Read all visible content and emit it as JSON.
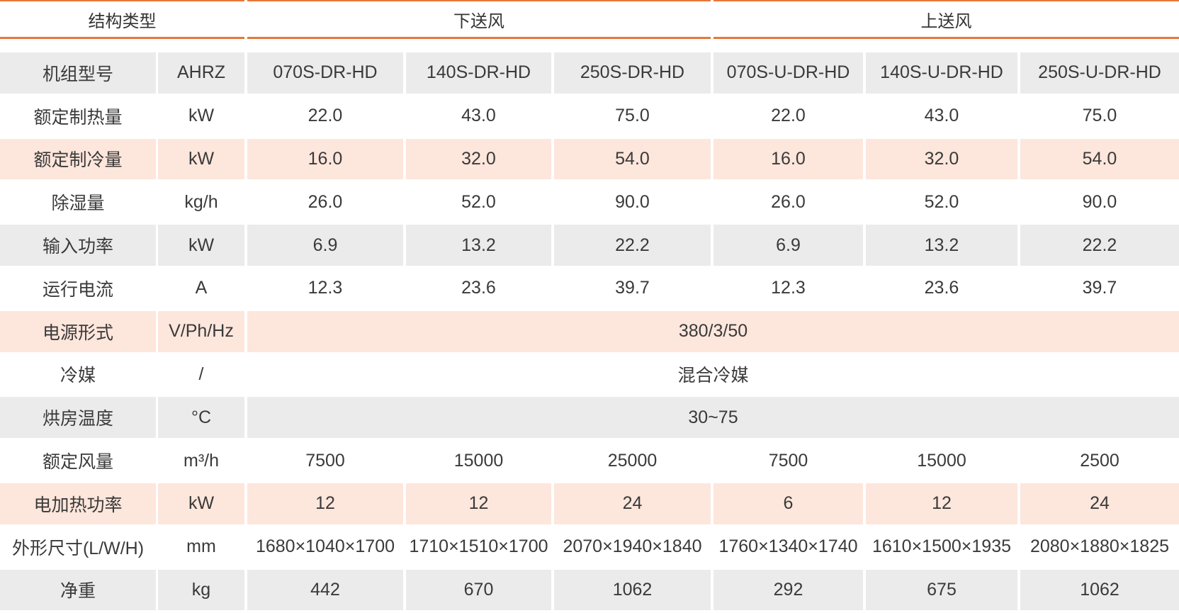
{
  "table": {
    "header": [
      "结构类型",
      "下送风",
      "上送风"
    ],
    "rows": [
      [
        "机组型号",
        "AHRZ",
        "070S-DR-HD",
        "140S-DR-HD",
        "250S-DR-HD",
        "070S-U-DR-HD",
        "140S-U-DR-HD",
        "250S-U-DR-HD"
      ],
      [
        "额定制热量",
        "kW",
        "22.0",
        "43.0",
        "75.0",
        "22.0",
        "43.0",
        "75.0"
      ],
      [
        "额定制冷量",
        "kW",
        "16.0",
        "32.0",
        "54.0",
        "16.0",
        "32.0",
        "54.0"
      ],
      [
        "除湿量",
        "kg/h",
        "26.0",
        "52.0",
        "90.0",
        "26.0",
        "52.0",
        "90.0"
      ],
      [
        "输入功率",
        "kW",
        "6.9",
        "13.2",
        "22.2",
        "6.9",
        "13.2",
        "22.2"
      ],
      [
        "运行电流",
        "A",
        "12.3",
        "23.6",
        "39.7",
        "12.3",
        "23.6",
        "39.7"
      ],
      [
        "电源形式",
        "V/Ph/Hz",
        "380/3/50"
      ],
      [
        "冷媒",
        "/",
        "混合冷媒"
      ],
      [
        "烘房温度",
        "°C",
        "30~75"
      ],
      [
        "额定风量",
        "m³/h",
        "7500",
        "15000",
        "25000",
        "7500",
        "15000",
        "2500"
      ],
      [
        "电加热功率",
        "kW",
        "12",
        "12",
        "24",
        "6",
        "12",
        "24"
      ],
      [
        "外形尺寸(L/W/H)",
        "mm",
        "1680×1040×1700",
        "1710×1510×1700",
        "2070×1940×1840",
        "1760×1340×1740",
        "1610×1500×1935",
        "2080×1880×1825"
      ],
      [
        "净重",
        "kg",
        "442",
        "670",
        "1062",
        "292",
        "675",
        "1062"
      ]
    ]
  }
}
